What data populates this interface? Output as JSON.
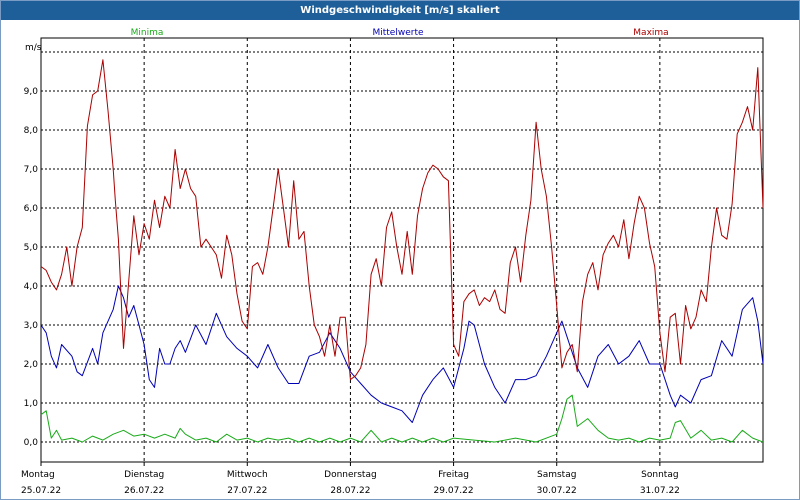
{
  "window": {
    "title": "Windgeschwindigkeit [m/s] skaliert"
  },
  "colors": {
    "minima": "#1aaa1a",
    "mittel": "#0000b4",
    "maxima": "#aa0000",
    "grid": "#000000",
    "titlebar": "#1f5f99"
  },
  "chart_data": {
    "type": "line",
    "title": "Windgeschwindigkeit [m/s] skaliert",
    "ylabel": "m/s",
    "ylim": [
      -0.5,
      10.0
    ],
    "y_ticks": [
      "0,0",
      "1,0",
      "2,0",
      "3,0",
      "4,0",
      "5,0",
      "6,0",
      "7,0",
      "8,0",
      "9,0"
    ],
    "y_tick_values": [
      0,
      1,
      2,
      3,
      4,
      5,
      6,
      7,
      8,
      9
    ],
    "x_range_days": [
      0,
      7
    ],
    "x_ticks": [
      {
        "day": "Montag",
        "date": "25.07.22"
      },
      {
        "day": "Dienstag",
        "date": "26.07.22"
      },
      {
        "day": "Mittwoch",
        "date": "27.07.22"
      },
      {
        "day": "Donnerstag",
        "date": "28.07.22"
      },
      {
        "day": "Freitag",
        "date": "29.07.22"
      },
      {
        "day": "Samstag",
        "date": "30.07.22"
      },
      {
        "day": "Sonntag",
        "date": "31.07.22"
      }
    ],
    "legend": [
      "Minima",
      "Mittelwerte",
      "Maxima"
    ],
    "series": [
      {
        "name": "Minima",
        "x": [
          0,
          0.05,
          0.1,
          0.15,
          0.2,
          0.3,
          0.4,
          0.5,
          0.6,
          0.7,
          0.8,
          0.9,
          1.0,
          1.1,
          1.2,
          1.3,
          1.35,
          1.4,
          1.5,
          1.6,
          1.7,
          1.8,
          1.9,
          2.0,
          2.1,
          2.2,
          2.3,
          2.4,
          2.5,
          2.6,
          2.7,
          2.8,
          2.9,
          3.0,
          3.1,
          3.2,
          3.3,
          3.4,
          3.5,
          3.6,
          3.7,
          3.8,
          3.9,
          4.0,
          4.2,
          4.4,
          4.6,
          4.8,
          5.0,
          5.05,
          5.1,
          5.15,
          5.2,
          5.3,
          5.4,
          5.5,
          5.6,
          5.7,
          5.8,
          5.9,
          6.0,
          6.1,
          6.15,
          6.2,
          6.3,
          6.4,
          6.5,
          6.6,
          6.7,
          6.8,
          6.9,
          7.0
        ],
        "values": [
          0.7,
          0.8,
          0.1,
          0.3,
          0.05,
          0.1,
          0.0,
          0.15,
          0.05,
          0.2,
          0.3,
          0.15,
          0.2,
          0.1,
          0.2,
          0.1,
          0.35,
          0.2,
          0.05,
          0.1,
          0.0,
          0.2,
          0.05,
          0.1,
          0.0,
          0.1,
          0.05,
          0.1,
          0.0,
          0.1,
          0.0,
          0.1,
          0.0,
          0.1,
          0.0,
          0.3,
          0.0,
          0.1,
          0.0,
          0.1,
          0.0,
          0.1,
          0.0,
          0.1,
          0.05,
          0.0,
          0.1,
          0.0,
          0.2,
          0.6,
          1.1,
          1.2,
          0.4,
          0.6,
          0.3,
          0.1,
          0.05,
          0.1,
          0.0,
          0.1,
          0.05,
          0.1,
          0.5,
          0.55,
          0.1,
          0.3,
          0.05,
          0.1,
          0.0,
          0.3,
          0.1,
          0.0
        ]
      },
      {
        "name": "Mittelwerte",
        "x": [
          0,
          0.05,
          0.1,
          0.15,
          0.2,
          0.3,
          0.35,
          0.4,
          0.5,
          0.55,
          0.6,
          0.7,
          0.75,
          0.8,
          0.85,
          0.9,
          0.95,
          1.0,
          1.05,
          1.1,
          1.15,
          1.2,
          1.25,
          1.3,
          1.35,
          1.4,
          1.5,
          1.6,
          1.7,
          1.8,
          1.9,
          2.0,
          2.1,
          2.2,
          2.3,
          2.4,
          2.5,
          2.6,
          2.7,
          2.8,
          2.9,
          3.0,
          3.1,
          3.2,
          3.3,
          3.4,
          3.5,
          3.6,
          3.7,
          3.8,
          3.9,
          4.0,
          4.1,
          4.15,
          4.2,
          4.3,
          4.4,
          4.5,
          4.6,
          4.7,
          4.8,
          4.9,
          5.0,
          5.05,
          5.1,
          5.2,
          5.3,
          5.4,
          5.5,
          5.6,
          5.7,
          5.8,
          5.9,
          6.0,
          6.1,
          6.15,
          6.2,
          6.3,
          6.4,
          6.5,
          6.6,
          6.7,
          6.8,
          6.9,
          6.95,
          7.0
        ],
        "values": [
          3.0,
          2.8,
          2.2,
          1.9,
          2.5,
          2.2,
          1.8,
          1.7,
          2.4,
          2.0,
          2.8,
          3.4,
          4.0,
          3.7,
          3.2,
          3.5,
          3.0,
          2.5,
          1.6,
          1.4,
          2.4,
          2.0,
          2.0,
          2.4,
          2.6,
          2.3,
          3.0,
          2.5,
          3.3,
          2.7,
          2.4,
          2.2,
          1.9,
          2.5,
          1.9,
          1.5,
          1.5,
          2.2,
          2.3,
          2.8,
          2.4,
          1.8,
          1.5,
          1.2,
          1.0,
          0.9,
          0.8,
          0.5,
          1.2,
          1.6,
          1.9,
          1.4,
          2.4,
          3.1,
          3.0,
          2.0,
          1.4,
          1.0,
          1.6,
          1.6,
          1.7,
          2.2,
          2.8,
          3.1,
          2.7,
          1.9,
          1.4,
          2.2,
          2.5,
          2.0,
          2.2,
          2.6,
          2.0,
          2.0,
          1.2,
          0.9,
          1.2,
          1.0,
          1.6,
          1.7,
          2.6,
          2.2,
          3.4,
          3.7,
          3.1,
          2.0
        ]
      },
      {
        "name": "Maxima",
        "x": [
          0,
          0.05,
          0.1,
          0.15,
          0.2,
          0.25,
          0.3,
          0.35,
          0.4,
          0.45,
          0.5,
          0.55,
          0.6,
          0.65,
          0.7,
          0.72,
          0.75,
          0.8,
          0.9,
          0.95,
          1.0,
          1.05,
          1.1,
          1.15,
          1.2,
          1.25,
          1.3,
          1.35,
          1.4,
          1.45,
          1.5,
          1.55,
          1.6,
          1.65,
          1.7,
          1.75,
          1.8,
          1.85,
          1.9,
          1.95,
          2.0,
          2.05,
          2.1,
          2.15,
          2.2,
          2.25,
          2.3,
          2.35,
          2.4,
          2.45,
          2.5,
          2.55,
          2.6,
          2.65,
          2.7,
          2.75,
          2.8,
          2.85,
          2.9,
          2.95,
          3.0,
          3.05,
          3.1,
          3.15,
          3.2,
          3.25,
          3.3,
          3.35,
          3.4,
          3.45,
          3.5,
          3.55,
          3.6,
          3.65,
          3.7,
          3.75,
          3.8,
          3.85,
          3.9,
          3.95,
          4.0,
          4.05,
          4.1,
          4.15,
          4.2,
          4.25,
          4.3,
          4.35,
          4.4,
          4.45,
          4.5,
          4.55,
          4.6,
          4.65,
          4.7,
          4.75,
          4.8,
          4.85,
          4.9,
          4.95,
          5.0,
          5.05,
          5.1,
          5.15,
          5.2,
          5.25,
          5.3,
          5.35,
          5.4,
          5.45,
          5.5,
          5.55,
          5.6,
          5.65,
          5.7,
          5.75,
          5.8,
          5.85,
          5.9,
          5.95,
          6.0,
          6.05,
          6.1,
          6.15,
          6.2,
          6.25,
          6.3,
          6.35,
          6.4,
          6.45,
          6.5,
          6.55,
          6.6,
          6.65,
          6.7,
          6.75,
          6.8,
          6.85,
          6.9,
          6.95,
          7.0
        ],
        "values": [
          4.5,
          4.4,
          4.1,
          3.9,
          4.3,
          5.0,
          4.0,
          5.0,
          5.5,
          8.1,
          8.9,
          9.0,
          9.8,
          8.5,
          7.0,
          6.2,
          5.2,
          2.4,
          5.8,
          4.8,
          5.6,
          5.2,
          6.2,
          5.5,
          6.3,
          6.0,
          7.5,
          6.5,
          7.0,
          6.5,
          6.3,
          5.0,
          5.2,
          5.0,
          4.8,
          4.2,
          5.3,
          4.8,
          3.8,
          3.1,
          2.9,
          4.5,
          4.6,
          4.3,
          5.0,
          6.0,
          7.0,
          6.0,
          5.0,
          6.7,
          5.2,
          5.4,
          4.0,
          3.0,
          2.7,
          2.2,
          3.0,
          2.2,
          3.2,
          3.2,
          1.6,
          1.7,
          1.9,
          2.5,
          4.3,
          4.7,
          4.0,
          5.5,
          5.9,
          5.0,
          4.3,
          5.4,
          4.3,
          5.8,
          6.5,
          6.9,
          7.1,
          7.0,
          6.8,
          6.7,
          2.5,
          2.2,
          3.6,
          3.8,
          3.9,
          3.5,
          3.7,
          3.6,
          3.9,
          3.4,
          3.3,
          4.6,
          5.0,
          4.1,
          5.3,
          6.2,
          8.2,
          7.0,
          6.3,
          5.0,
          3.5,
          1.9,
          2.3,
          2.5,
          1.8,
          3.6,
          4.3,
          4.6,
          3.9,
          4.8,
          5.1,
          5.3,
          5.0,
          5.7,
          4.7,
          5.6,
          6.3,
          6.0,
          5.1,
          4.5,
          2.8,
          1.8,
          3.2,
          3.3,
          2.0,
          3.5,
          2.9,
          3.2,
          3.9,
          3.6,
          5.0,
          6.0,
          5.3,
          5.2,
          6.1,
          7.9,
          8.2,
          8.6,
          8.0,
          9.6,
          6.0
        ]
      }
    ]
  }
}
